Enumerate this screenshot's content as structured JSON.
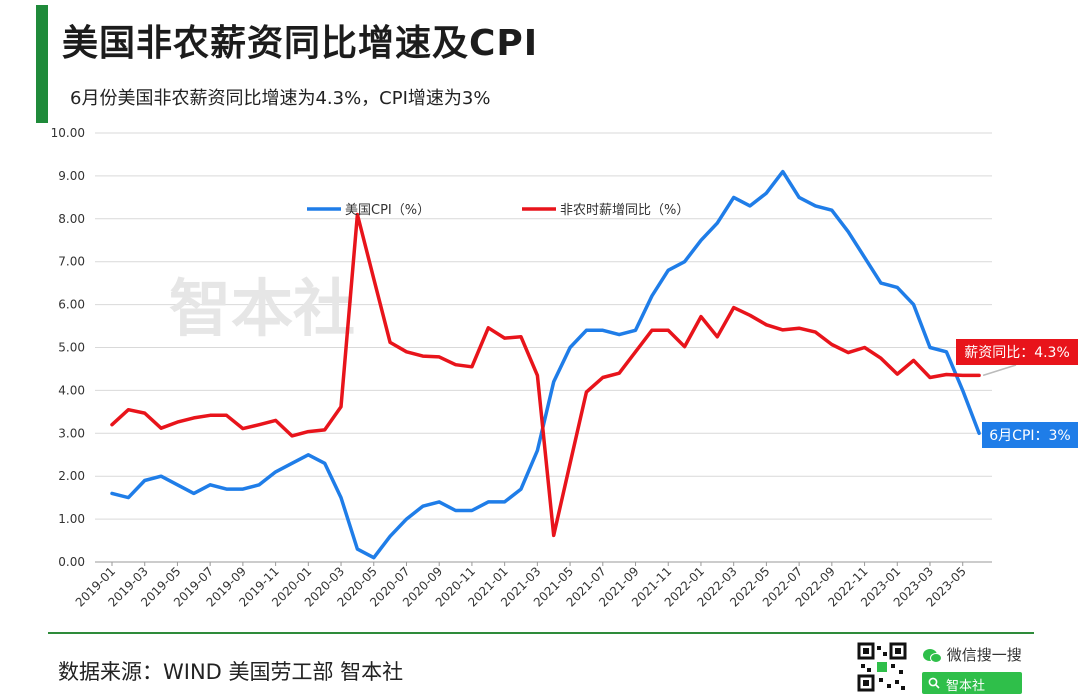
{
  "header": {
    "title": "美国非农薪资同比增速及CPI",
    "subtitle": "6月份美国非农薪资同比增速为4.3%，CPI增速为3%"
  },
  "chart_data": {
    "type": "line",
    "ylim": [
      0,
      10
    ],
    "yticks": [
      "0.00",
      "1.00",
      "2.00",
      "3.00",
      "4.00",
      "5.00",
      "6.00",
      "7.00",
      "8.00",
      "9.00",
      "10.00"
    ],
    "x": [
      "2019-01",
      "2019-02",
      "2019-03",
      "2019-04",
      "2019-05",
      "2019-06",
      "2019-07",
      "2019-08",
      "2019-09",
      "2019-10",
      "2019-11",
      "2019-12",
      "2020-01",
      "2020-02",
      "2020-03",
      "2020-04",
      "2020-05",
      "2020-06",
      "2020-07",
      "2020-08",
      "2020-09",
      "2020-10",
      "2020-11",
      "2020-12",
      "2021-01",
      "2021-02",
      "2021-03",
      "2021-04",
      "2021-05",
      "2021-06",
      "2021-07",
      "2021-08",
      "2021-09",
      "2021-10",
      "2021-11",
      "2021-12",
      "2022-01",
      "2022-02",
      "2022-03",
      "2022-04",
      "2022-05",
      "2022-06",
      "2022-07",
      "2022-08",
      "2022-09",
      "2022-10",
      "2022-11",
      "2022-12",
      "2023-01",
      "2023-02",
      "2023-03",
      "2023-04",
      "2023-05",
      "2023-06"
    ],
    "xtick_labels": [
      "2019-01",
      "2019-03",
      "2019-05",
      "2019-07",
      "2019-09",
      "2019-11",
      "2020-01",
      "2020-03",
      "2020-05",
      "2020-07",
      "2020-09",
      "2020-11",
      "2021-01",
      "2021-03",
      "2021-05",
      "2021-07",
      "2021-09",
      "2021-11",
      "2022-01",
      "2022-03",
      "2022-05",
      "2022-07",
      "2022-09",
      "2022-11",
      "2023-01",
      "2023-03",
      "2023-05"
    ],
    "grid": true,
    "legend_position": "top-center",
    "series": [
      {
        "name": "美国CPI（%）",
        "color": "#1f7de8",
        "values": [
          1.6,
          1.5,
          1.9,
          2.0,
          1.8,
          1.6,
          1.8,
          1.7,
          1.7,
          1.8,
          2.1,
          2.3,
          2.5,
          2.3,
          1.5,
          0.3,
          0.1,
          0.6,
          1.0,
          1.3,
          1.4,
          1.2,
          1.2,
          1.4,
          1.4,
          1.7,
          2.6,
          4.2,
          5.0,
          5.4,
          5.4,
          5.3,
          5.4,
          6.2,
          6.8,
          7.0,
          7.5,
          7.9,
          8.5,
          8.3,
          8.6,
          9.1,
          8.5,
          8.3,
          8.2,
          7.7,
          7.1,
          6.5,
          6.4,
          6.0,
          5.0,
          4.9,
          4.0,
          3.0
        ]
      },
      {
        "name": "非农时薪增同比（%）",
        "color": "#e8141b",
        "values": [
          3.2,
          3.55,
          3.47,
          3.12,
          3.26,
          3.36,
          3.42,
          3.42,
          3.11,
          3.2,
          3.3,
          2.94,
          3.04,
          3.08,
          3.62,
          8.1,
          6.6,
          5.12,
          4.9,
          4.8,
          4.78,
          4.6,
          4.55,
          5.46,
          5.22,
          5.25,
          4.35,
          0.62,
          2.3,
          3.96,
          4.3,
          4.4,
          4.9,
          5.4,
          5.4,
          5.02,
          5.72,
          5.25,
          5.93,
          5.75,
          5.53,
          5.41,
          5.45,
          5.36,
          5.07,
          4.88,
          5.0,
          4.75,
          4.38,
          4.7,
          4.3,
          4.37,
          4.35,
          4.35
        ]
      }
    ],
    "annotations": [
      {
        "text": "薪资同比：4.3%",
        "color": "#e8141b",
        "series": 1
      },
      {
        "text": "6月CPI：3%",
        "color": "#1f7de8",
        "series": 0
      }
    ],
    "watermark": "智本社"
  },
  "footer": {
    "source": "数据来源：WIND  美国劳工部 智本社",
    "wechat_label": "微信搜一搜",
    "search_label": "智本社",
    "qr_icon": "qr-code-icon"
  }
}
